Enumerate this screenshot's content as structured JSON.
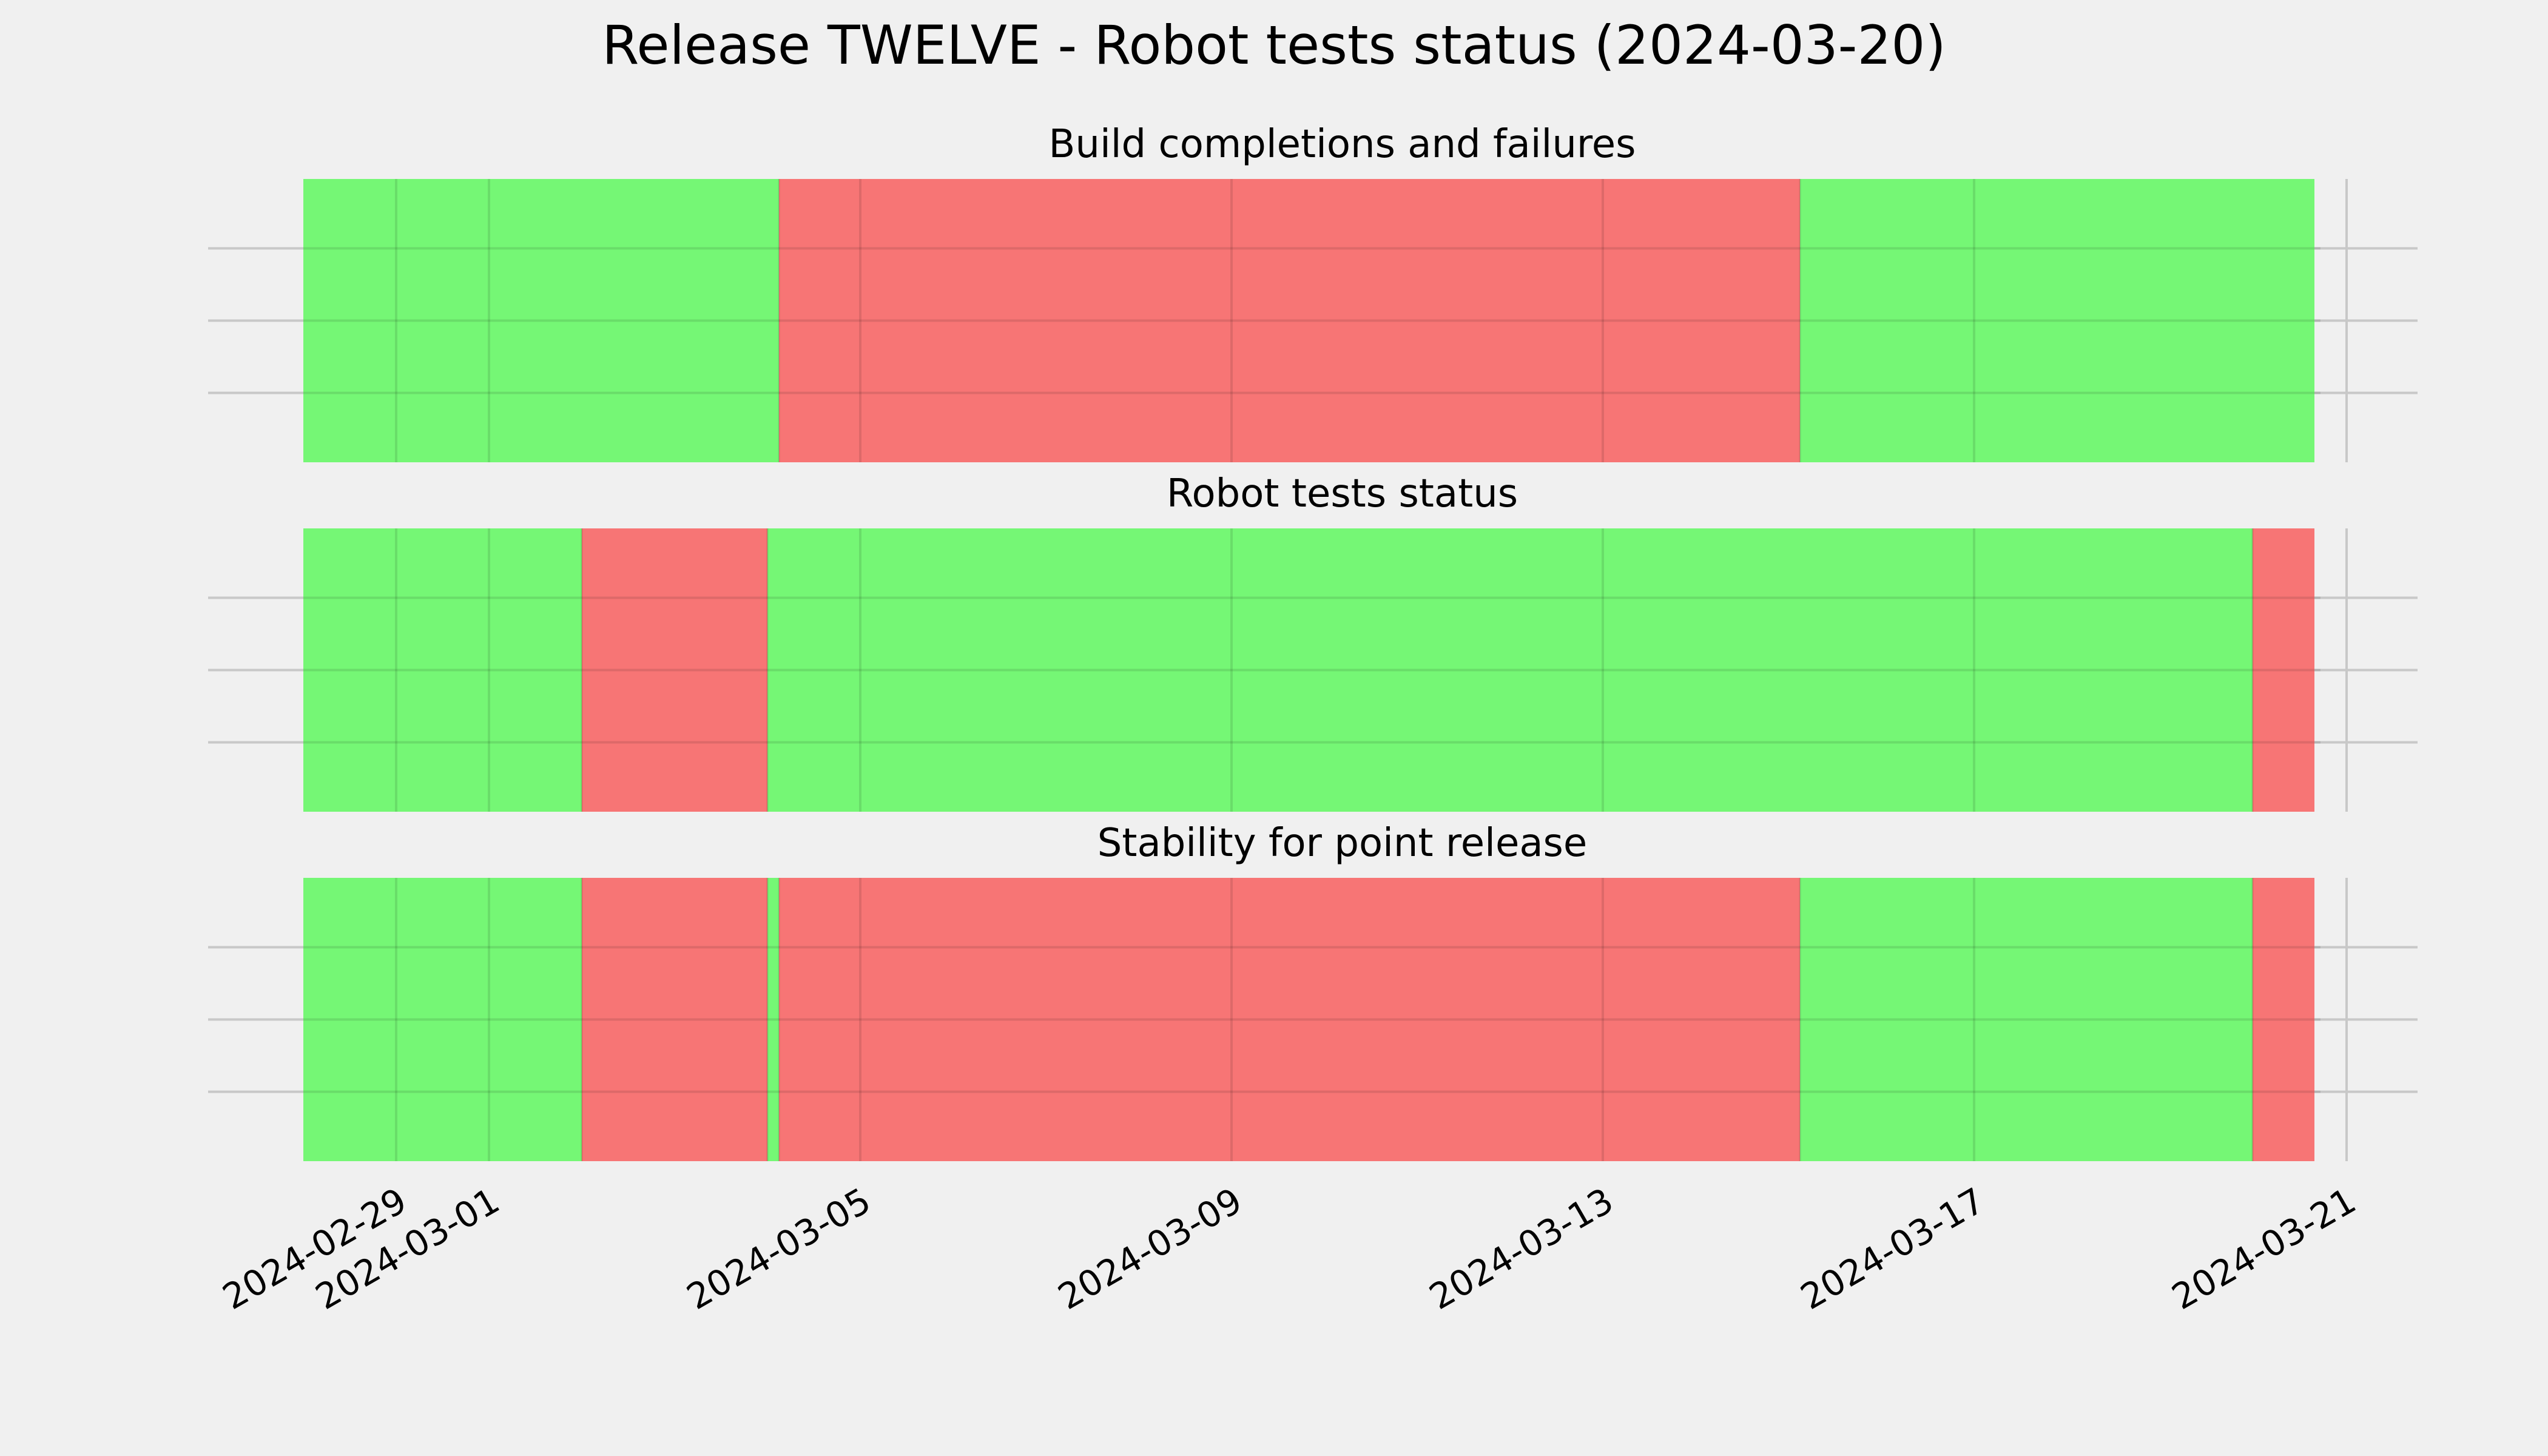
{
  "title": "Release TWELVE - Robot tests status (2024-03-20)",
  "colors": {
    "background": "#f0f0f0",
    "pass": "#75f775",
    "fail": "#f77575",
    "grid": "#c8c8c8",
    "text": "#000000"
  },
  "chart_data": {
    "type": "timeline",
    "x_axis": {
      "type": "date",
      "range": [
        "2024-02-28T00:00",
        "2024-03-22T00:00"
      ],
      "tick_labels": [
        "2024-02-29",
        "2024-03-01",
        "2024-03-05",
        "2024-03-09",
        "2024-03-13",
        "2024-03-17",
        "2024-03-21"
      ]
    },
    "grid": true,
    "panels": [
      {
        "title": "Build completions and failures",
        "segments": [
          {
            "start": "2024-02-28T00:00",
            "end": "2024-03-04T03:00",
            "status": "pass"
          },
          {
            "start": "2024-03-04T03:00",
            "end": "2024-03-15T03:00",
            "status": "fail"
          },
          {
            "start": "2024-03-15T03:00",
            "end": "2024-03-20T16:00",
            "status": "pass"
          }
        ]
      },
      {
        "title": "Robot tests status",
        "segments": [
          {
            "start": "2024-02-28T00:00",
            "end": "2024-03-02T00:00",
            "status": "pass"
          },
          {
            "start": "2024-03-02T00:00",
            "end": "2024-03-04T00:00",
            "status": "fail"
          },
          {
            "start": "2024-03-04T00:00",
            "end": "2024-03-20T00:00",
            "status": "pass"
          },
          {
            "start": "2024-03-20T00:00",
            "end": "2024-03-20T16:00",
            "status": "fail"
          }
        ]
      },
      {
        "title": "Stability for point release",
        "segments": [
          {
            "start": "2024-02-28T00:00",
            "end": "2024-03-02T00:00",
            "status": "pass"
          },
          {
            "start": "2024-03-02T00:00",
            "end": "2024-03-04T00:00",
            "status": "fail"
          },
          {
            "start": "2024-03-04T00:00",
            "end": "2024-03-04T03:00",
            "status": "pass"
          },
          {
            "start": "2024-03-04T03:00",
            "end": "2024-03-15T03:00",
            "status": "fail"
          },
          {
            "start": "2024-03-15T03:00",
            "end": "2024-03-20T00:00",
            "status": "pass"
          },
          {
            "start": "2024-03-20T00:00",
            "end": "2024-03-20T16:00",
            "status": "fail"
          }
        ]
      }
    ]
  }
}
